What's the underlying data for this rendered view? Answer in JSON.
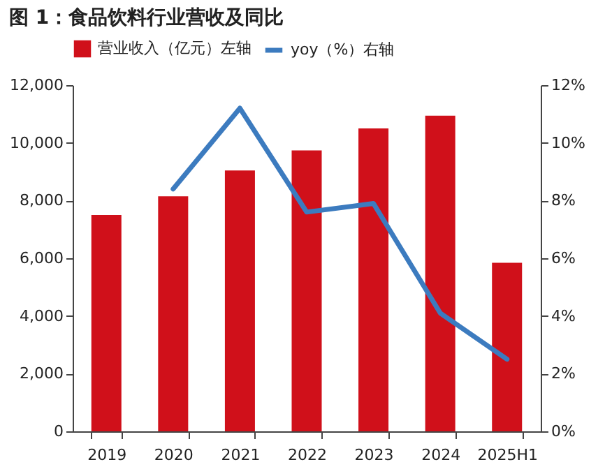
{
  "chart_data": {
    "type": "bar",
    "title": "图 1：食品饮料行业营收及同比",
    "categories": [
      "2019",
      "2020",
      "2021",
      "2022",
      "2023",
      "2024",
      "2025H1"
    ],
    "series": [
      {
        "name": "营业收入（亿元）左轴",
        "color": "#d0101a",
        "values": [
          7500,
          8150,
          9040,
          9740,
          10500,
          10940,
          5840
        ]
      },
      {
        "name": "yoy（%）右轴",
        "type": "line",
        "axis": "y2",
        "color": "#3c7bbf",
        "values": [
          null,
          8.4,
          11.2,
          7.6,
          7.9,
          4.1,
          2.5
        ]
      }
    ],
    "ylim": [
      0,
      12000
    ],
    "yticks": [
      {
        "value": 0,
        "label": "0"
      },
      {
        "value": 2000,
        "label": "2,000"
      },
      {
        "value": 4000,
        "label": "4,000"
      },
      {
        "value": 6000,
        "label": "6,000"
      },
      {
        "value": 8000,
        "label": "8,000"
      },
      {
        "value": 10000,
        "label": "10,000"
      },
      {
        "value": 12000,
        "label": "12,000"
      }
    ],
    "y2lim": [
      0,
      12
    ],
    "y2ticks": [
      {
        "value": 0,
        "label": "0%"
      },
      {
        "value": 2,
        "label": "2%"
      },
      {
        "value": 4,
        "label": "4%"
      },
      {
        "value": 6,
        "label": "6%"
      },
      {
        "value": 8,
        "label": "8%"
      },
      {
        "value": 10,
        "label": "10%"
      },
      {
        "value": 12,
        "label": "12%"
      }
    ],
    "grid": false,
    "legend": "top",
    "marker": "none",
    "line_style": "solid"
  }
}
